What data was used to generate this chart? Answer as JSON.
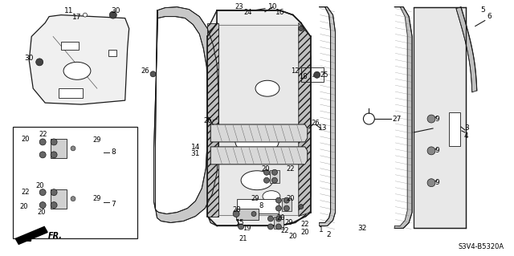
{
  "bg_color": "#ffffff",
  "diagram_code": "S3V4-B5320A",
  "direction_label": "FR.",
  "fig_width": 6.4,
  "fig_height": 3.19,
  "dpi": 100
}
